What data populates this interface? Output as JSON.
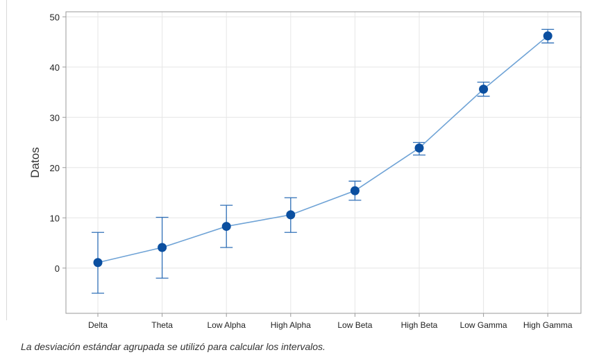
{
  "chart_data": {
    "type": "line",
    "title": "",
    "xlabel": "",
    "ylabel": "Datos",
    "categories": [
      "Delta",
      "Theta",
      "Low Alpha",
      "High Alpha",
      "Low Beta",
      "High Beta",
      "Low Gamma",
      "High Gamma"
    ],
    "series": [
      {
        "values": [
          1.1,
          4.1,
          8.3,
          10.6,
          15.4,
          23.9,
          35.6,
          46.2
        ],
        "error_low": [
          -5.0,
          -2.0,
          4.1,
          7.1,
          13.5,
          22.5,
          34.2,
          44.8
        ],
        "error_high": [
          7.1,
          10.1,
          12.5,
          14.0,
          17.3,
          25.0,
          37.0,
          47.5
        ]
      }
    ],
    "ylim": [
      -9,
      51
    ],
    "yticks": [
      0,
      10,
      20,
      30,
      40,
      50
    ],
    "grid": true,
    "colors": {
      "marker": "#0b4fa0",
      "line": "#6fa3d6",
      "error_bar": "#2f6fb7",
      "grid": "#e6e6e6",
      "frame": "#9a9a9a"
    }
  },
  "footnote": "La desviación estándar agrupada se utilizó para calcular los intervalos."
}
